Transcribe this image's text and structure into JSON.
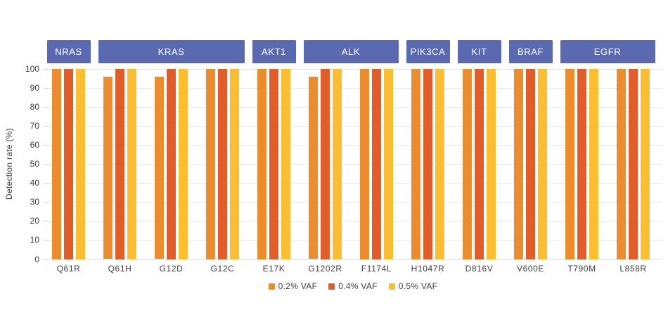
{
  "chart_data": {
    "type": "bar",
    "ylabel": "Detection rate (%)",
    "ylim": [
      0,
      100
    ],
    "ytick_step": 10,
    "grid": true,
    "legend_position": "bottom-center",
    "categories": [
      "Q61R",
      "Q61H",
      "G12D",
      "G12C",
      "E17K",
      "G1202R",
      "F1174L",
      "H1047R",
      "D816V",
      "V600E",
      "T790M",
      "L858R"
    ],
    "gene_groups": [
      {
        "gene": "NRAS",
        "mutations": [
          "Q61R"
        ]
      },
      {
        "gene": "KRAS",
        "mutations": [
          "Q61H",
          "G12D",
          "G12C"
        ]
      },
      {
        "gene": "AKT1",
        "mutations": [
          "E17K"
        ]
      },
      {
        "gene": "ALK",
        "mutations": [
          "G1202R",
          "F1174L"
        ]
      },
      {
        "gene": "PIK3CA",
        "mutations": [
          "H1047R"
        ]
      },
      {
        "gene": "KIT",
        "mutations": [
          "D816V"
        ]
      },
      {
        "gene": "BRAF",
        "mutations": [
          "V600E"
        ]
      },
      {
        "gene": "EGFR",
        "mutations": [
          "T790M",
          "L858R"
        ]
      }
    ],
    "series": [
      {
        "name": "0.2% VAF",
        "color": "#EB8C2E",
        "values": [
          100,
          96,
          96,
          100,
          100,
          96,
          100,
          100,
          100,
          100,
          100,
          100
        ]
      },
      {
        "name": "0.4% VAF",
        "color": "#E15E2B",
        "values": [
          100,
          100,
          100,
          100,
          100,
          100,
          100,
          100,
          100,
          100,
          100,
          100
        ]
      },
      {
        "name": "0.5% VAF",
        "color": "#FBBE33",
        "values": [
          100,
          100,
          100,
          100,
          100,
          100,
          100,
          100,
          100,
          100,
          100,
          100
        ]
      }
    ],
    "colors": {
      "gene_header_bg": "#5B69B0",
      "gene_header_text": "#FFFFFF",
      "grid_line": "#E5E5E8",
      "axis_line": "#D8D8DB",
      "tick_mark": "#CDCED3",
      "text": "#3D3D3D"
    }
  }
}
